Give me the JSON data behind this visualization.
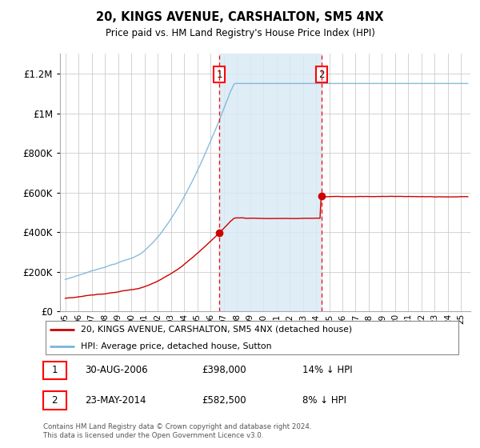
{
  "title": "20, KINGS AVENUE, CARSHALTON, SM5 4NX",
  "subtitle": "Price paid vs. HM Land Registry's House Price Index (HPI)",
  "legend_line1": "20, KINGS AVENUE, CARSHALTON, SM5 4NX (detached house)",
  "legend_line2": "HPI: Average price, detached house, Sutton",
  "annotation1": {
    "label": "1",
    "date": "30-AUG-2006",
    "price": "£398,000",
    "note": "14% ↓ HPI"
  },
  "annotation2": {
    "label": "2",
    "date": "23-MAY-2014",
    "price": "£582,500",
    "note": "8% ↓ HPI"
  },
  "footer": "Contains HM Land Registry data © Crown copyright and database right 2024.\nThis data is licensed under the Open Government Licence v3.0.",
  "hpi_color": "#7ab5d8",
  "price_color": "#cc0000",
  "dot_color": "#cc0000",
  "background_color": "#ffffff",
  "shaded_color": "#daeaf5",
  "ylim": [
    0,
    1300000
  ],
  "yticks": [
    0,
    200000,
    400000,
    600000,
    800000,
    1000000,
    1200000
  ],
  "t_sale1": 2006.667,
  "t_sale2": 2014.417,
  "price_sale1": 398000,
  "price_sale2": 582500,
  "xstart": 1995.0,
  "xend": 2025.5
}
